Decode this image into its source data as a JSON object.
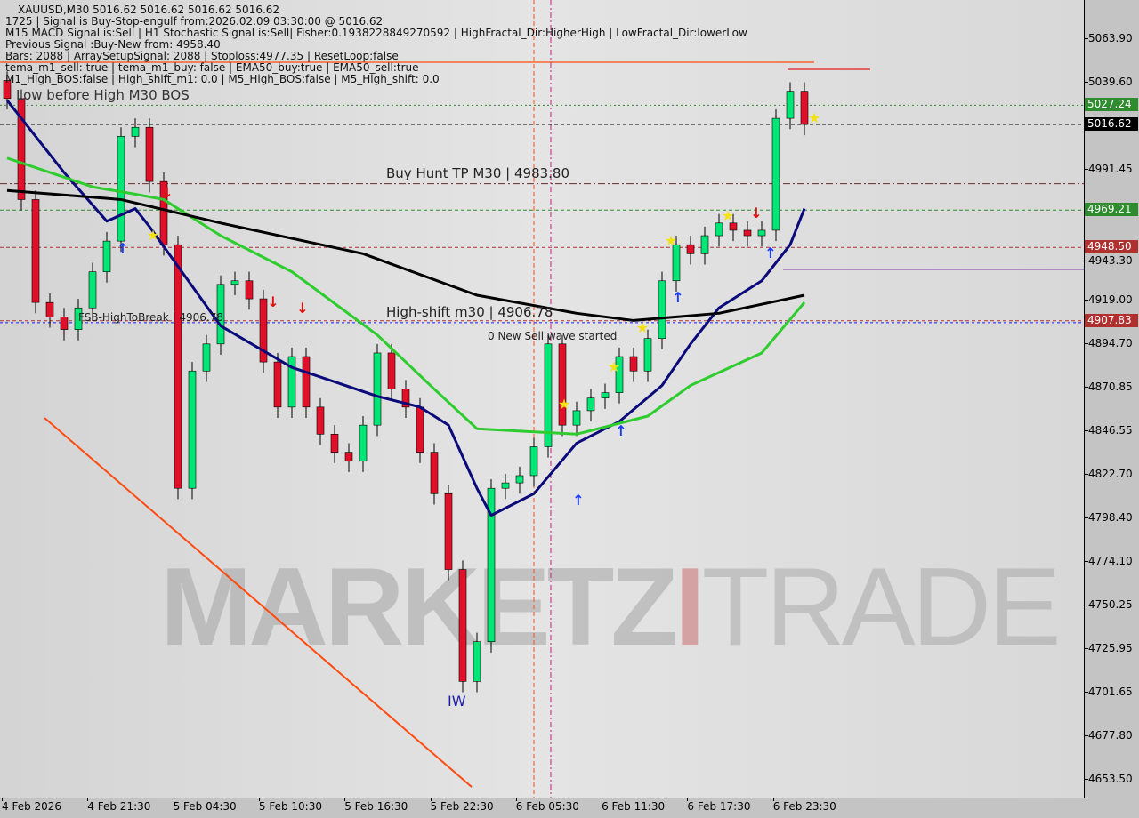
{
  "header": {
    "symbol_line": "XAUUSD,M30  5016.62 5016.62 5016.62 5016.62",
    "lines": [
      "1725 | Signal is Buy-Stop-engulf from:2026.02.09 03:30:00 @ 5016.62",
      "M15 MACD Signal is:Sell | H1 Stochastic Signal is:Sell| Fisher:0.1938228849270592 | HighFractal_Dir:HigherHigh | LowFractal_Dir:lowerLow",
      "Previous Signal :Buy-New from: 4958.40",
      "Bars: 2088 | ArraySetupSignal: 2088 | Stoploss:4977.35 | ResetLoop:false",
      "tema_m1_sell: true | tema_m1_buy: false | EMA50_buy:true | EMA50_sell:true",
      "M1_High_BOS:false | High_shift_m1: 0.0 | M5_High_BOS:false | M5_High_shift: 0.0"
    ]
  },
  "annotations": {
    "low_before_high": "Low before High  M30 BOS",
    "fsb": "FSB-HighToBreak | 4906.78",
    "buy_hunt": "Buy Hunt TP M30 | 4983.80",
    "high_shift": "High-shift m30 | 4906.78",
    "sell_wave": "0 New Sell wave started",
    "wave_label": "IW"
  },
  "watermark": {
    "part1": "MARKETZ",
    "part2": "I",
    "part3": "TRADE"
  },
  "chart_data": {
    "type": "candlestick",
    "symbol": "XAUUSD",
    "timeframe": "M30",
    "ylim": [
      4645,
      5075
    ],
    "y_ticks": [
      "5063.90",
      "5039.60",
      "4991.45",
      "4943.30",
      "4919.00",
      "4894.70",
      "4870.85",
      "4846.55",
      "4822.70",
      "4798.40",
      "4774.10",
      "4750.25",
      "4725.95",
      "4701.65",
      "4677.80",
      "4653.50"
    ],
    "x_ticks": [
      "4 Feb 2026",
      "4 Feb 21:30",
      "5 Feb 04:30",
      "5 Feb 10:30",
      "5 Feb 16:30",
      "5 Feb 22:30",
      "6 Feb 05:30",
      "6 Feb 11:30",
      "6 Feb 17:30",
      "6 Feb 23:30"
    ],
    "closes": [
      5031,
      4975,
      4918,
      4910,
      4903,
      4915,
      4935,
      4952,
      5010,
      5015,
      4985,
      4950,
      4815,
      4880,
      4895,
      4928,
      4930,
      4920,
      4885,
      4860,
      4888,
      4860,
      4845,
      4835,
      4830,
      4850,
      4890,
      4870,
      4860,
      4835,
      4812,
      4770,
      4708,
      4730,
      4815,
      4818,
      4822,
      4838,
      4895,
      4850,
      4858,
      4865,
      4868,
      4888,
      4880,
      4898,
      4930,
      4950,
      4945,
      4955,
      4962,
      4958,
      4955,
      4958,
      5020,
      5035,
      5016.62
    ],
    "moving_averages": [
      {
        "color": "#0a0a7a",
        "points": [
          [
            0,
            5030
          ],
          [
            4,
            4990
          ],
          [
            7,
            4963
          ],
          [
            9,
            4970
          ],
          [
            10,
            4960
          ],
          [
            15,
            4905
          ],
          [
            20,
            4882
          ],
          [
            26,
            4866
          ],
          [
            29,
            4860
          ],
          [
            31,
            4850
          ],
          [
            33,
            4815
          ],
          [
            34,
            4800
          ],
          [
            37,
            4812
          ],
          [
            40,
            4840
          ],
          [
            43,
            4852
          ],
          [
            46,
            4872
          ],
          [
            48,
            4895
          ],
          [
            50,
            4915
          ],
          [
            53,
            4930
          ],
          [
            55,
            4950
          ],
          [
            56,
            4970
          ]
        ]
      },
      {
        "color": "#2ecc2e",
        "points": [
          [
            0,
            4998
          ],
          [
            6,
            4982
          ],
          [
            9,
            4978
          ],
          [
            11,
            4975
          ],
          [
            15,
            4955
          ],
          [
            20,
            4935
          ],
          [
            26,
            4900
          ],
          [
            30,
            4870
          ],
          [
            33,
            4848
          ],
          [
            40,
            4845
          ],
          [
            45,
            4855
          ],
          [
            48,
            4872
          ],
          [
            53,
            4890
          ],
          [
            56,
            4918
          ]
        ]
      },
      {
        "color": "#000000",
        "points": [
          [
            0,
            4980
          ],
          [
            8,
            4975
          ],
          [
            15,
            4962
          ],
          [
            25,
            4945
          ],
          [
            33,
            4922
          ],
          [
            40,
            4912
          ],
          [
            44,
            4908
          ],
          [
            50,
            4912
          ],
          [
            56,
            4922
          ]
        ]
      }
    ],
    "levels": [
      {
        "price": 5027.24,
        "label": "5027.24",
        "color": "#2e8b2e",
        "style": "dotted"
      },
      {
        "price": 5016.62,
        "label": "5016.62",
        "color": "#000000",
        "style": "dashed"
      },
      {
        "price": 4983.8,
        "color": "#6a2a2a",
        "style": "dashdot"
      },
      {
        "price": 4969.21,
        "label": "4969.21",
        "color": "#2e8b2e",
        "style": "dashed"
      },
      {
        "price": 4948.5,
        "label": "4948.50",
        "color": "#b03030",
        "style": "dashed"
      },
      {
        "price": 4907.83,
        "label": "4907.83",
        "color": "#b03030",
        "style": "dashed"
      }
    ],
    "bull_color": "#00e676",
    "bear_color": "#e0102a"
  }
}
